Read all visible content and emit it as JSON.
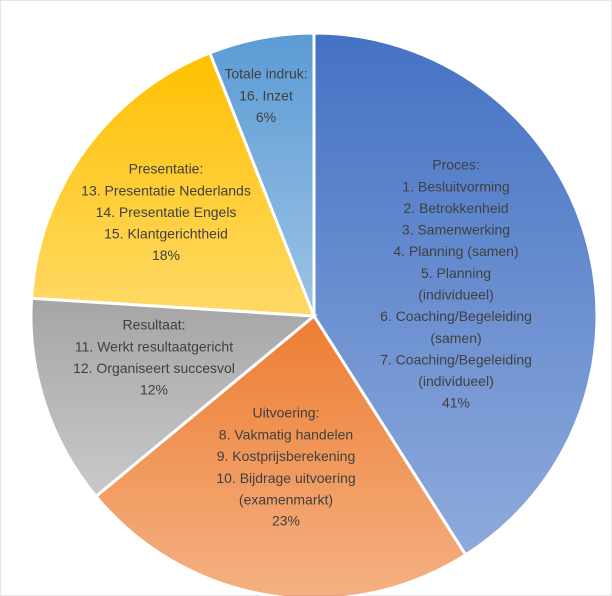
{
  "chart_data": {
    "type": "pie",
    "categories": [
      "Proces:",
      "Uitvoering:",
      "Resultaat:",
      "Presentatie:",
      "Totale indruk:"
    ],
    "items": [
      [
        "1. Besluitvorming",
        "2. Betrokkenheid",
        "3. Samenwerking",
        "4. Planning (samen)",
        "5. Planning (individueel)",
        "6. Coaching/Begeleiding (samen)",
        "7. Coaching/Begeleiding (individueel)"
      ],
      [
        "8. Vakmatig handelen",
        "9. Kostprijsberekening",
        "10. Bijdrage uitvoering (examenmarkt)"
      ],
      [
        "11. Werkt resultaatgericht",
        "12. Organiseert succesvol"
      ],
      [
        "13. Presentatie Nederlands",
        "14. Presentatie Engels",
        "15. Klantgerichtheid"
      ],
      [
        "16. Inzet"
      ]
    ],
    "values": [
      41,
      23,
      12,
      18,
      6
    ],
    "value_labels": [
      "41%",
      "23%",
      "12%",
      "18%",
      "6%"
    ],
    "colors": [
      "#4472c4",
      "#ed7d31",
      "#a5a5a5",
      "#ffc000",
      "#5b9bd5"
    ]
  }
}
